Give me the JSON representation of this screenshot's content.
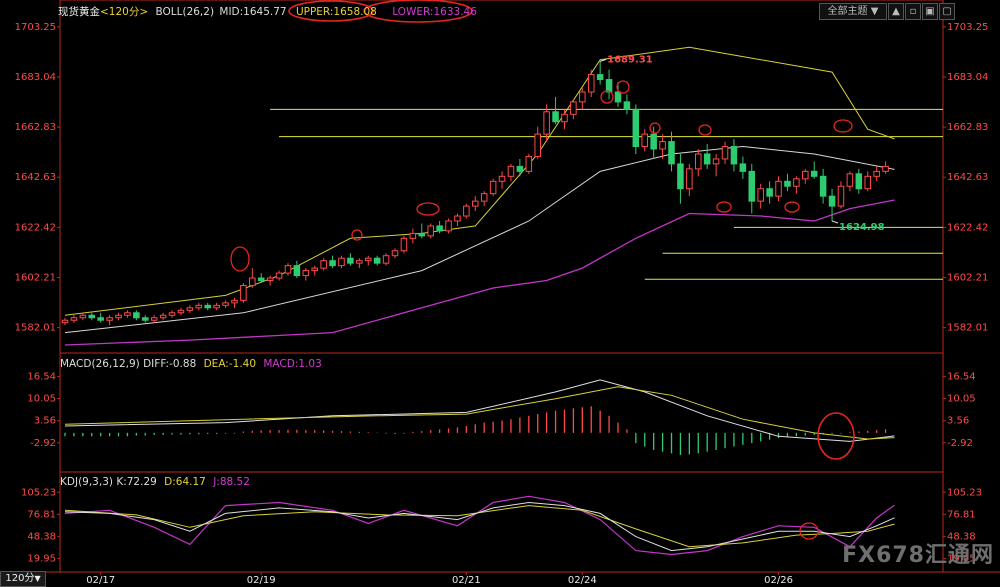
{
  "header": {
    "symbol": "现货黄金",
    "period": "<120分>",
    "boll_label": "BOLL(26,2)",
    "boll_mid": "MID:1645.77",
    "boll_upper": "UPPER:1658.08",
    "boll_lower": "LOWER:1633.46",
    "theme_select": "全部主题",
    "macd_label": "MACD(26,12,9)",
    "macd_diff": "DIFF:-0.88",
    "macd_dea": "DEA:-1.40",
    "macd_macd": "MACD:1.03",
    "kdj_label": "KDJ(9,3,3)",
    "kdj_k": "K:72.29",
    "kdj_d": "D:64.17",
    "kdj_j": "J:88.52",
    "period_button": "120分",
    "watermark": "FX678汇通网"
  },
  "colors": {
    "up": "#ff4a4a",
    "down": "#2ecc71",
    "axis": "#b8281e",
    "boll_mid": "#d8d8d8",
    "boll_upper": "#d7d13a",
    "boll_lower": "#c236c8",
    "annot": "#e52620",
    "hline": "#e6e63c"
  },
  "chart_data": {
    "type": "candlestick",
    "price_axis": {
      "ticks": [
        "1703.25",
        "1683.04",
        "1662.83",
        "1642.63",
        "1622.42",
        "1602.21",
        "1582.01"
      ],
      "range": [
        1573,
        1706
      ]
    },
    "macd_axis": {
      "ticks": [
        "16.54",
        "10.05",
        "3.56",
        "-2.92"
      ],
      "range": [
        -10,
        19
      ]
    },
    "kdj_axis": {
      "ticks": [
        "105.23",
        "76.81",
        "48.38",
        "19.95"
      ],
      "range": [
        5,
        112
      ]
    },
    "x_labels": [
      {
        "label": "02/17",
        "index": 4
      },
      {
        "label": "02/19",
        "index": 22
      },
      {
        "label": "02/21",
        "index": 45
      },
      {
        "label": "02/24",
        "index": 58
      },
      {
        "label": "02/26",
        "index": 80
      }
    ],
    "ohlc": [
      [
        1584,
        1586,
        1583,
        1585
      ],
      [
        1585,
        1587,
        1584,
        1586
      ],
      [
        1586,
        1588,
        1585,
        1587
      ],
      [
        1587,
        1588,
        1585,
        1586
      ],
      [
        1586,
        1588,
        1584,
        1585
      ],
      [
        1585,
        1587,
        1583,
        1586
      ],
      [
        1586,
        1588,
        1585,
        1587
      ],
      [
        1587,
        1589,
        1586,
        1588
      ],
      [
        1588,
        1589,
        1585,
        1586
      ],
      [
        1586,
        1587,
        1584,
        1585
      ],
      [
        1585,
        1587,
        1584,
        1586
      ],
      [
        1586,
        1588,
        1585,
        1587
      ],
      [
        1587,
        1589,
        1586,
        1588
      ],
      [
        1588,
        1590,
        1587,
        1589
      ],
      [
        1589,
        1591,
        1588,
        1590
      ],
      [
        1590,
        1592,
        1589,
        1591
      ],
      [
        1591,
        1592,
        1589,
        1590
      ],
      [
        1590,
        1592,
        1589,
        1591
      ],
      [
        1591,
        1593,
        1590,
        1592
      ],
      [
        1592,
        1594,
        1590,
        1593
      ],
      [
        1593,
        1600,
        1592,
        1599
      ],
      [
        1599,
        1606,
        1598,
        1602
      ],
      [
        1602,
        1604,
        1600,
        1601
      ],
      [
        1601,
        1603,
        1599,
        1602
      ],
      [
        1602,
        1605,
        1601,
        1604
      ],
      [
        1604,
        1608,
        1603,
        1607
      ],
      [
        1607,
        1609,
        1602,
        1603
      ],
      [
        1603,
        1606,
        1601,
        1605
      ],
      [
        1605,
        1607,
        1603,
        1606
      ],
      [
        1606,
        1610,
        1605,
        1609
      ],
      [
        1609,
        1611,
        1606,
        1607
      ],
      [
        1607,
        1611,
        1606,
        1610
      ],
      [
        1610,
        1612,
        1607,
        1608
      ],
      [
        1608,
        1610,
        1606,
        1609
      ],
      [
        1609,
        1611,
        1607,
        1610
      ],
      [
        1610,
        1611,
        1607,
        1608
      ],
      [
        1608,
        1612,
        1607,
        1611
      ],
      [
        1611,
        1614,
        1610,
        1613
      ],
      [
        1613,
        1619,
        1612,
        1618
      ],
      [
        1618,
        1622,
        1616,
        1620
      ],
      [
        1620,
        1624,
        1618,
        1619
      ],
      [
        1619,
        1624,
        1618,
        1623
      ],
      [
        1623,
        1625,
        1620,
        1621
      ],
      [
        1621,
        1626,
        1620,
        1625
      ],
      [
        1625,
        1628,
        1623,
        1627
      ],
      [
        1627,
        1632,
        1626,
        1631
      ],
      [
        1631,
        1635,
        1629,
        1633
      ],
      [
        1633,
        1637,
        1631,
        1636
      ],
      [
        1636,
        1642,
        1635,
        1641
      ],
      [
        1641,
        1645,
        1638,
        1643
      ],
      [
        1643,
        1648,
        1641,
        1647
      ],
      [
        1647,
        1650,
        1643,
        1645
      ],
      [
        1645,
        1652,
        1644,
        1651
      ],
      [
        1651,
        1663,
        1650,
        1660
      ],
      [
        1660,
        1672,
        1657,
        1669
      ],
      [
        1669,
        1675,
        1664,
        1665
      ],
      [
        1665,
        1670,
        1662,
        1668
      ],
      [
        1668,
        1674,
        1666,
        1673
      ],
      [
        1673,
        1679,
        1670,
        1677
      ],
      [
        1677,
        1686,
        1675,
        1684
      ],
      [
        1684,
        1689.31,
        1680,
        1682
      ],
      [
        1682,
        1686,
        1674,
        1677
      ],
      [
        1677,
        1681,
        1671,
        1673
      ],
      [
        1673,
        1676,
        1668,
        1670
      ],
      [
        1670,
        1672,
        1652,
        1655
      ],
      [
        1655,
        1662,
        1653,
        1660
      ],
      [
        1660,
        1663,
        1650,
        1654
      ],
      [
        1654,
        1660,
        1650,
        1657
      ],
      [
        1657,
        1661,
        1645,
        1648
      ],
      [
        1648,
        1652,
        1632,
        1638
      ],
      [
        1638,
        1648,
        1635,
        1646
      ],
      [
        1646,
        1654,
        1643,
        1652
      ],
      [
        1652,
        1656,
        1646,
        1648
      ],
      [
        1648,
        1652,
        1643,
        1650
      ],
      [
        1650,
        1657,
        1648,
        1655
      ],
      [
        1655,
        1658,
        1645,
        1648
      ],
      [
        1648,
        1651,
        1642,
        1645
      ],
      [
        1645,
        1648,
        1628,
        1633
      ],
      [
        1633,
        1640,
        1630,
        1638
      ],
      [
        1638,
        1641,
        1632,
        1635
      ],
      [
        1635,
        1643,
        1633,
        1641
      ],
      [
        1641,
        1644,
        1637,
        1639
      ],
      [
        1639,
        1643,
        1636,
        1642
      ],
      [
        1642,
        1646,
        1640,
        1645
      ],
      [
        1645,
        1649,
        1642,
        1643
      ],
      [
        1643,
        1646,
        1632,
        1635
      ],
      [
        1635,
        1638,
        1624.98,
        1631
      ],
      [
        1631,
        1641,
        1630,
        1639
      ],
      [
        1639,
        1645,
        1637,
        1644
      ],
      [
        1644,
        1646,
        1636,
        1638
      ],
      [
        1638,
        1645,
        1637,
        1643
      ],
      [
        1643,
        1647,
        1641,
        1645
      ],
      [
        1645,
        1649,
        1644,
        1647
      ]
    ],
    "boll_mid": [
      [
        0,
        1580
      ],
      [
        20,
        1588
      ],
      [
        40,
        1605
      ],
      [
        52,
        1625
      ],
      [
        60,
        1645
      ],
      [
        68,
        1652
      ],
      [
        76,
        1655
      ],
      [
        84,
        1652
      ],
      [
        93,
        1645.77
      ]
    ],
    "boll_upper": [
      [
        0,
        1587
      ],
      [
        18,
        1595
      ],
      [
        24,
        1603
      ],
      [
        32,
        1618
      ],
      [
        40,
        1620
      ],
      [
        46,
        1623
      ],
      [
        53,
        1652
      ],
      [
        60,
        1690
      ],
      [
        70,
        1695
      ],
      [
        78,
        1690
      ],
      [
        86,
        1685
      ],
      [
        90,
        1662
      ],
      [
        93,
        1658.08
      ]
    ],
    "boll_lower": [
      [
        0,
        1575
      ],
      [
        14,
        1577
      ],
      [
        30,
        1580
      ],
      [
        40,
        1590
      ],
      [
        48,
        1598
      ],
      [
        54,
        1601
      ],
      [
        58,
        1606
      ],
      [
        64,
        1618
      ],
      [
        70,
        1628
      ],
      [
        78,
        1627
      ],
      [
        84,
        1625
      ],
      [
        88,
        1630
      ],
      [
        93,
        1633.46
      ]
    ],
    "h_levels": [
      1670,
      1659,
      1622.4,
      1612,
      1601.5
    ],
    "peak_label": {
      "text": "1689.31",
      "index": 60,
      "value": 1689.31
    },
    "trough_label": {
      "text": "1624.98",
      "index": 86,
      "value": 1624.98
    },
    "macd_diff": [
      [
        0,
        2
      ],
      [
        18,
        3
      ],
      [
        30,
        5
      ],
      [
        45,
        6
      ],
      [
        55,
        12
      ],
      [
        60,
        15.5
      ],
      [
        65,
        12
      ],
      [
        72,
        5
      ],
      [
        80,
        -1
      ],
      [
        88,
        -2.5
      ],
      [
        93,
        -0.88
      ]
    ],
    "macd_dea": [
      [
        0,
        2.5
      ],
      [
        20,
        4
      ],
      [
        35,
        5
      ],
      [
        45,
        5.5
      ],
      [
        55,
        10
      ],
      [
        62,
        13.5
      ],
      [
        68,
        11
      ],
      [
        76,
        4
      ],
      [
        84,
        0
      ],
      [
        90,
        -1.8
      ],
      [
        93,
        -1.4
      ]
    ],
    "macd_hist": [
      -1,
      -1,
      -1,
      -1,
      -1,
      -1,
      -1,
      -1,
      -0.8,
      -0.8,
      -0.6,
      -0.6,
      -0.5,
      -0.5,
      -0.4,
      -0.4,
      -0.3,
      -0.3,
      -0.2,
      -0.2,
      0.4,
      0.6,
      0.7,
      0.8,
      0.8,
      0.9,
      0.9,
      0.8,
      0.8,
      0.7,
      0.6,
      0.5,
      0.4,
      0.3,
      0.2,
      0.1,
      -0.2,
      -0.3,
      -0.2,
      0.3,
      0.5,
      0.8,
      1.0,
      1.3,
      1.6,
      2,
      2.5,
      3,
      3.3,
      3.6,
      4,
      4.5,
      5,
      5.5,
      6,
      6.5,
      6.8,
      7.2,
      7.5,
      7.8,
      6.5,
      5,
      3,
      1,
      -3,
      -4,
      -5,
      -5.5,
      -6,
      -6.5,
      -6.3,
      -6,
      -5.5,
      -5,
      -4.5,
      -4,
      -3.5,
      -3,
      -2.5,
      -2,
      -1.5,
      -1.2,
      -1,
      -0.8,
      -0.6,
      -0.5,
      -0.3,
      -0.2,
      0.2,
      0.4,
      0.6,
      0.8,
      1.03
    ],
    "kdj_k": [
      [
        0,
        80
      ],
      [
        5,
        78
      ],
      [
        10,
        70
      ],
      [
        14,
        55
      ],
      [
        18,
        78
      ],
      [
        24,
        85
      ],
      [
        30,
        80
      ],
      [
        34,
        72
      ],
      [
        38,
        78
      ],
      [
        44,
        70
      ],
      [
        48,
        85
      ],
      [
        52,
        92
      ],
      [
        56,
        88
      ],
      [
        60,
        78
      ],
      [
        64,
        48
      ],
      [
        68,
        30
      ],
      [
        72,
        35
      ],
      [
        76,
        45
      ],
      [
        80,
        55
      ],
      [
        84,
        55
      ],
      [
        88,
        48
      ],
      [
        91,
        62
      ],
      [
        93,
        72.29
      ]
    ],
    "kdj_d": [
      [
        0,
        82
      ],
      [
        8,
        76
      ],
      [
        14,
        60
      ],
      [
        20,
        75
      ],
      [
        28,
        80
      ],
      [
        36,
        76
      ],
      [
        44,
        75
      ],
      [
        52,
        88
      ],
      [
        58,
        82
      ],
      [
        64,
        58
      ],
      [
        70,
        35
      ],
      [
        76,
        40
      ],
      [
        82,
        50
      ],
      [
        86,
        52
      ],
      [
        90,
        55
      ],
      [
        93,
        64.17
      ]
    ],
    "kdj_j": [
      [
        0,
        78
      ],
      [
        5,
        82
      ],
      [
        10,
        60
      ],
      [
        14,
        38
      ],
      [
        18,
        88
      ],
      [
        24,
        92
      ],
      [
        30,
        82
      ],
      [
        34,
        65
      ],
      [
        38,
        82
      ],
      [
        44,
        62
      ],
      [
        48,
        92
      ],
      [
        52,
        100
      ],
      [
        56,
        92
      ],
      [
        60,
        70
      ],
      [
        64,
        30
      ],
      [
        68,
        25
      ],
      [
        72,
        30
      ],
      [
        76,
        48
      ],
      [
        80,
        62
      ],
      [
        84,
        60
      ],
      [
        88,
        35
      ],
      [
        91,
        72
      ],
      [
        93,
        88.52
      ]
    ]
  }
}
